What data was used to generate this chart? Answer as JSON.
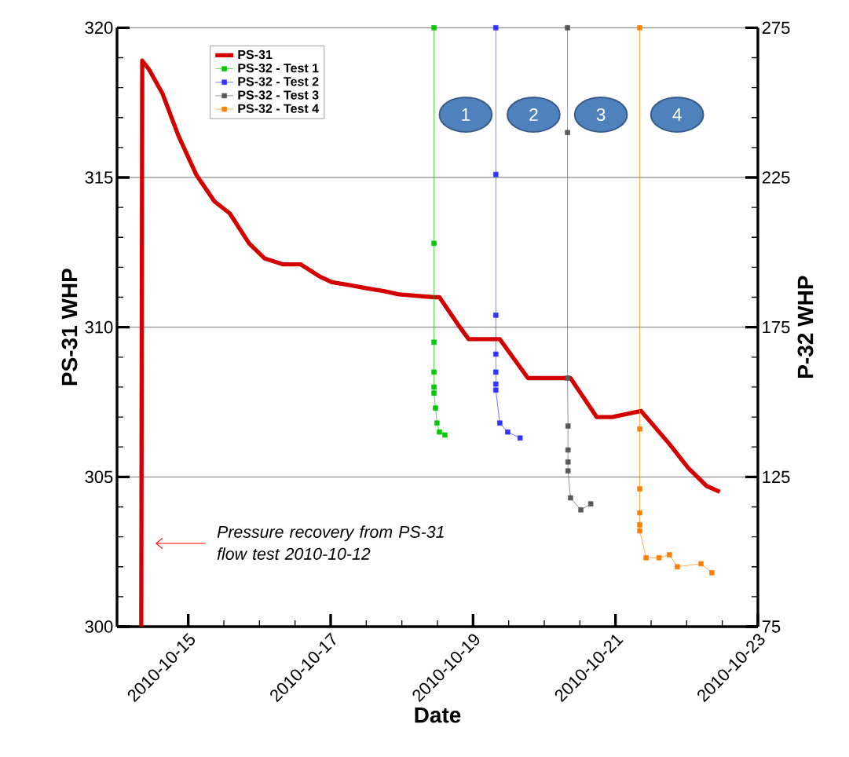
{
  "chart_data": {
    "type": "line",
    "xlabel": "Date",
    "ylabel": "PS-31 WHP",
    "y2label": "P-32 WHP",
    "xlim": [
      "2010-10-14",
      "2010-10-23"
    ],
    "xticks": [
      "2010-10-15",
      "2010-10-17",
      "2010-10-19",
      "2010-10-21",
      "2010-10-23"
    ],
    "ylim": [
      300,
      320
    ],
    "yticks": [
      300,
      305,
      310,
      315,
      320
    ],
    "y2lim": [
      75,
      275
    ],
    "y2ticks": [
      75,
      125,
      175,
      225,
      275
    ],
    "grid": "y",
    "legend": "top left",
    "series": [
      {
        "name": "PS-31",
        "color": "#d40000",
        "marker": "none",
        "x": [
          "2010-10-14T08:10",
          "2010-10-14T08:30",
          "2010-10-14T10:50",
          "2010-10-14T15:20",
          "2010-10-14T20:40",
          "2010-10-15T02:40",
          "2010-10-15T08:50",
          "2010-10-15T14:00",
          "2010-10-15T20:30",
          "2010-10-16T01:40",
          "2010-10-16T07:50",
          "2010-10-16T13:50",
          "2010-10-16T20:10",
          "2010-10-17T00:30",
          "2010-10-17T06:50",
          "2010-10-17T12:10",
          "2010-10-17T18:10",
          "2010-10-17T22:40",
          "2010-10-18T10:50",
          "2010-10-18T12:40",
          "2010-10-18T18:50",
          "2010-10-18T22:30",
          "2010-10-19T07:10",
          "2010-10-19T09:00",
          "2010-10-19T18:30",
          "2010-10-20T05:10",
          "2010-10-20T08:50",
          "2010-10-20T17:40",
          "2010-10-20T22:50",
          "2010-10-21T08:40",
          "2010-10-21T18:10",
          "2010-10-22T00:30",
          "2010-10-22T06:40",
          "2010-10-22T11:10"
        ],
        "values": [
          300,
          318.9,
          318.6,
          317.8,
          316.4,
          315.1,
          314.2,
          313.8,
          312.8,
          312.3,
          312.1,
          312.1,
          311.7,
          311.5,
          311.4,
          311.3,
          311.2,
          311.1,
          311.0,
          311.0,
          310.1,
          309.6,
          309.6,
          309.6,
          308.3,
          308.3,
          308.3,
          307.0,
          307.0,
          307.2,
          306.1,
          305.3,
          304.7,
          304.5
        ]
      },
      {
        "name": "PS-32 - Test 1",
        "color": "#00cc00",
        "marker": "square",
        "axis": "y2",
        "x": [
          "2010-10-18T10:50",
          "2010-10-18T10:50",
          "2010-10-18T10:50",
          "2010-10-18T10:50",
          "2010-10-18T10:50",
          "2010-10-18T10:50",
          "2010-10-18T11:20",
          "2010-10-18T11:50",
          "2010-10-18T12:40",
          "2010-10-18T14:30"
        ],
        "values": [
          275,
          203,
          170,
          160,
          155,
          153,
          148,
          143,
          140,
          139
        ]
      },
      {
        "name": "PS-32 - Test 2",
        "color": "#3333ff",
        "marker": "square",
        "axis": "y2",
        "x": [
          "2010-10-19T07:40",
          "2010-10-19T07:40",
          "2010-10-19T07:40",
          "2010-10-19T07:40",
          "2010-10-19T07:40",
          "2010-10-19T07:40",
          "2010-10-19T07:40",
          "2010-10-19T09:00",
          "2010-10-19T11:40",
          "2010-10-19T15:50"
        ],
        "values": [
          275,
          226,
          179,
          166,
          160,
          156,
          154,
          143,
          140,
          138
        ]
      },
      {
        "name": "PS-32 - Test 3",
        "color": "#595959",
        "marker": "square",
        "axis": "y2",
        "x": [
          "2010-10-20T07:50",
          "2010-10-20T07:50",
          "2010-10-20T07:50",
          "2010-10-20T08:00",
          "2010-10-20T08:00",
          "2010-10-20T08:00",
          "2010-10-20T08:00",
          "2010-10-20T08:50",
          "2010-10-20T12:20",
          "2010-10-20T15:40"
        ],
        "values": [
          275,
          240,
          158,
          142,
          134,
          130,
          127,
          118,
          114,
          116
        ]
      },
      {
        "name": "PS-32 - Test 4",
        "color": "#ff8000",
        "marker": "square",
        "axis": "y2",
        "x": [
          "2010-10-21T08:10",
          "2010-10-21T08:10",
          "2010-10-21T08:10",
          "2010-10-21T08:10",
          "2010-10-21T08:10",
          "2010-10-21T08:10",
          "2010-10-21T10:20",
          "2010-10-21T14:40",
          "2010-10-21T18:10",
          "2010-10-21T20:50",
          "2010-10-22T04:50",
          "2010-10-22T08:30"
        ],
        "values": [
          275,
          141,
          121,
          113,
          109,
          107,
          98,
          98,
          99,
          95,
          96,
          93
        ]
      }
    ],
    "annotations": [
      "Pressure recovery from PS-31 flow test 2010-10-12",
      "1",
      "2",
      "3",
      "4"
    ]
  }
}
